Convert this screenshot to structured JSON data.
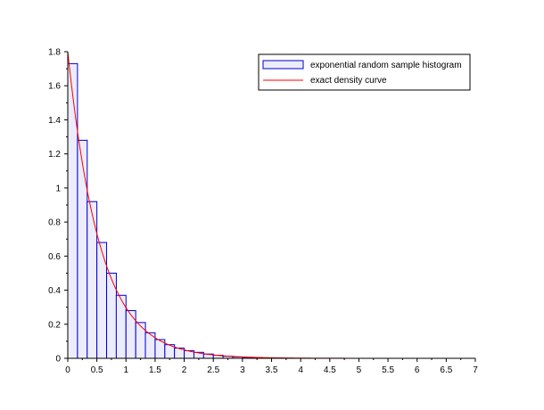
{
  "chart_data": {
    "type": "bar",
    "title": "",
    "xlabel": "",
    "ylabel": "",
    "xlim": [
      0,
      7
    ],
    "ylim": [
      0,
      1.8
    ],
    "xticks": [
      "0",
      "0.5",
      "1",
      "1.5",
      "2",
      "2.5",
      "3",
      "3.5",
      "4",
      "4.5",
      "5",
      "5.5",
      "6",
      "6.5",
      "7"
    ],
    "yticks": [
      "0",
      "0.2",
      "0.4",
      "0.6",
      "0.8",
      "1",
      "1.2",
      "1.4",
      "1.6",
      "1.8"
    ],
    "grid": false,
    "legend_position": "top-right",
    "histogram": {
      "name": "exponential random sample histogram",
      "bin_width": 0.167,
      "bin_starts": [
        0,
        0.167,
        0.333,
        0.5,
        0.667,
        0.833,
        1.0,
        1.167,
        1.333,
        1.5,
        1.667,
        1.833,
        2.0,
        2.167,
        2.333,
        2.5,
        2.667,
        2.833,
        3.0,
        3.167
      ],
      "values": [
        1.73,
        1.28,
        0.92,
        0.68,
        0.5,
        0.37,
        0.28,
        0.21,
        0.15,
        0.11,
        0.08,
        0.06,
        0.045,
        0.035,
        0.025,
        0.018,
        0.012,
        0.008,
        0.006,
        0.004
      ],
      "fill_color": "#ececfb",
      "edge_color": "#0000cc"
    },
    "density_curve": {
      "name": "exact density curve",
      "rate": 1.8,
      "x_range": [
        0,
        6.2
      ],
      "color": "#ff0000"
    }
  }
}
